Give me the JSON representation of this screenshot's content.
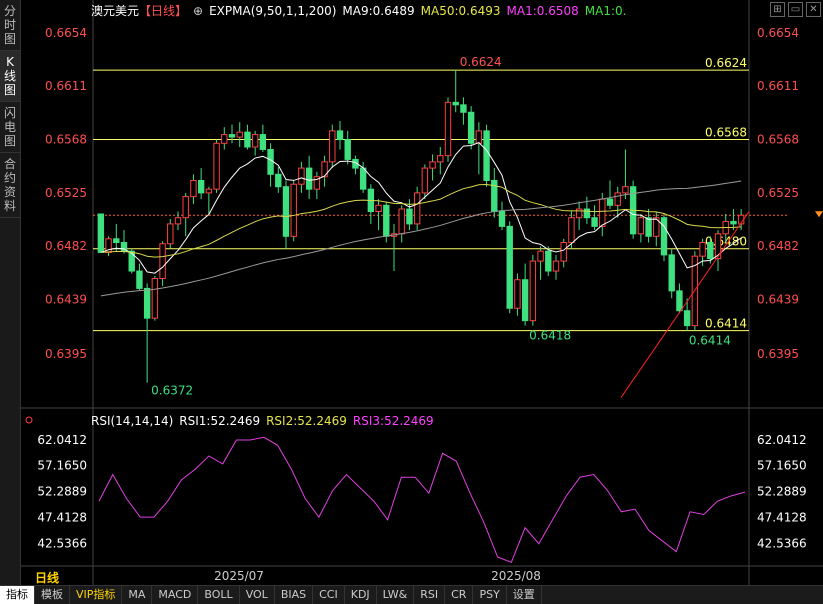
{
  "side_tabs": [
    {
      "label": "分时图"
    },
    {
      "label": "K线图",
      "active": true
    },
    {
      "label": "闪电图"
    },
    {
      "label": "合约资料"
    }
  ],
  "header": {
    "symbol": "澳元美元",
    "period": "【日线】",
    "zoom_icon": "⊕",
    "expma_label": "EXPMA(9,50,1,1,200)",
    "ma9": "MA9:0.6489",
    "ma50": "MA50:0.6493",
    "ma1a": "MA1:0.6508",
    "ma1b": "MA1:0."
  },
  "colors": {
    "up": "#3ee07f",
    "down": "#3ee07f",
    "price_axis": "#ff4d4d",
    "hline": "#ffff66",
    "ma9": "#ffffff",
    "ma50": "#d9d94c",
    "ma200": "#aaaaaa",
    "rsi": "#e040e0",
    "trend": "#ff2020"
  },
  "chart_data": {
    "type": "candlestick",
    "y_ticks": [
      "0.6654",
      "0.6611",
      "0.6568",
      "0.6525",
      "0.6482",
      "0.6439",
      "0.6395"
    ],
    "ylim": [
      0.6354,
      0.6666
    ],
    "x_labels": [
      "2025/07",
      "2025/08"
    ],
    "horizontal_levels": [
      "0.6624",
      "0.6568",
      "0.6480",
      "0.6414"
    ],
    "current_price_marker": "0.6507",
    "annotations": [
      "0.6624",
      "0.6418",
      "0.6414",
      "0.6372"
    ],
    "candles": [
      {
        "o": 0.6508,
        "h": 0.6508,
        "l": 0.6477,
        "c": 0.6477
      },
      {
        "o": 0.6477,
        "h": 0.649,
        "l": 0.6474,
        "c": 0.6488
      },
      {
        "o": 0.6488,
        "h": 0.65,
        "l": 0.6478,
        "c": 0.6485
      },
      {
        "o": 0.6485,
        "h": 0.6495,
        "l": 0.6476,
        "c": 0.6478
      },
      {
        "o": 0.6478,
        "h": 0.648,
        "l": 0.646,
        "c": 0.6462
      },
      {
        "o": 0.6462,
        "h": 0.6468,
        "l": 0.6446,
        "c": 0.6448
      },
      {
        "o": 0.6448,
        "h": 0.6452,
        "l": 0.6372,
        "c": 0.6424
      },
      {
        "o": 0.6424,
        "h": 0.6458,
        "l": 0.6422,
        "c": 0.6456
      },
      {
        "o": 0.6456,
        "h": 0.6486,
        "l": 0.645,
        "c": 0.6484
      },
      {
        "o": 0.6484,
        "h": 0.6504,
        "l": 0.648,
        "c": 0.65
      },
      {
        "o": 0.65,
        "h": 0.651,
        "l": 0.6495,
        "c": 0.6505
      },
      {
        "o": 0.6505,
        "h": 0.6525,
        "l": 0.649,
        "c": 0.6522
      },
      {
        "o": 0.6522,
        "h": 0.654,
        "l": 0.6516,
        "c": 0.6535
      },
      {
        "o": 0.6535,
        "h": 0.6545,
        "l": 0.652,
        "c": 0.6525
      },
      {
        "o": 0.6525,
        "h": 0.653,
        "l": 0.6508,
        "c": 0.6528
      },
      {
        "o": 0.6528,
        "h": 0.6568,
        "l": 0.6525,
        "c": 0.6565
      },
      {
        "o": 0.6565,
        "h": 0.6578,
        "l": 0.656,
        "c": 0.6572
      },
      {
        "o": 0.6572,
        "h": 0.658,
        "l": 0.6565,
        "c": 0.657
      },
      {
        "o": 0.657,
        "h": 0.6582,
        "l": 0.6562,
        "c": 0.6574
      },
      {
        "o": 0.6574,
        "h": 0.658,
        "l": 0.656,
        "c": 0.6562
      },
      {
        "o": 0.6562,
        "h": 0.6575,
        "l": 0.6555,
        "c": 0.6572
      },
      {
        "o": 0.6572,
        "h": 0.658,
        "l": 0.6558,
        "c": 0.656
      },
      {
        "o": 0.656,
        "h": 0.6565,
        "l": 0.653,
        "c": 0.654
      },
      {
        "o": 0.654,
        "h": 0.6546,
        "l": 0.6525,
        "c": 0.653
      },
      {
        "o": 0.653,
        "h": 0.6535,
        "l": 0.648,
        "c": 0.649
      },
      {
        "o": 0.649,
        "h": 0.6535,
        "l": 0.6486,
        "c": 0.6532
      },
      {
        "o": 0.6532,
        "h": 0.655,
        "l": 0.6525,
        "c": 0.6545
      },
      {
        "o": 0.6545,
        "h": 0.6555,
        "l": 0.652,
        "c": 0.6528
      },
      {
        "o": 0.6528,
        "h": 0.6542,
        "l": 0.652,
        "c": 0.6538
      },
      {
        "o": 0.6538,
        "h": 0.6555,
        "l": 0.653,
        "c": 0.655
      },
      {
        "o": 0.655,
        "h": 0.658,
        "l": 0.6545,
        "c": 0.6575
      },
      {
        "o": 0.6575,
        "h": 0.6583,
        "l": 0.656,
        "c": 0.6568
      },
      {
        "o": 0.6568,
        "h": 0.6575,
        "l": 0.6548,
        "c": 0.6552
      },
      {
        "o": 0.6552,
        "h": 0.6555,
        "l": 0.654,
        "c": 0.6545
      },
      {
        "o": 0.6545,
        "h": 0.655,
        "l": 0.6525,
        "c": 0.6528
      },
      {
        "o": 0.6528,
        "h": 0.6532,
        "l": 0.65,
        "c": 0.651
      },
      {
        "o": 0.651,
        "h": 0.652,
        "l": 0.6495,
        "c": 0.6515
      },
      {
        "o": 0.6515,
        "h": 0.6518,
        "l": 0.6485,
        "c": 0.649
      },
      {
        "o": 0.649,
        "h": 0.65,
        "l": 0.6462,
        "c": 0.6492
      },
      {
        "o": 0.6492,
        "h": 0.6515,
        "l": 0.6485,
        "c": 0.6512
      },
      {
        "o": 0.6512,
        "h": 0.652,
        "l": 0.6495,
        "c": 0.65
      },
      {
        "o": 0.65,
        "h": 0.653,
        "l": 0.6495,
        "c": 0.6525
      },
      {
        "o": 0.6525,
        "h": 0.6548,
        "l": 0.652,
        "c": 0.6545
      },
      {
        "o": 0.6545,
        "h": 0.6556,
        "l": 0.6535,
        "c": 0.655
      },
      {
        "o": 0.655,
        "h": 0.6562,
        "l": 0.654,
        "c": 0.6555
      },
      {
        "o": 0.6555,
        "h": 0.6602,
        "l": 0.655,
        "c": 0.6598
      },
      {
        "o": 0.6598,
        "h": 0.6624,
        "l": 0.659,
        "c": 0.6596
      },
      {
        "o": 0.6596,
        "h": 0.6602,
        "l": 0.658,
        "c": 0.659
      },
      {
        "o": 0.659,
        "h": 0.6595,
        "l": 0.656,
        "c": 0.6565
      },
      {
        "o": 0.6565,
        "h": 0.6582,
        "l": 0.654,
        "c": 0.6575
      },
      {
        "o": 0.6575,
        "h": 0.658,
        "l": 0.653,
        "c": 0.6535
      },
      {
        "o": 0.6535,
        "h": 0.6545,
        "l": 0.6505,
        "c": 0.651
      },
      {
        "o": 0.651,
        "h": 0.6518,
        "l": 0.6495,
        "c": 0.6498
      },
      {
        "o": 0.6498,
        "h": 0.6502,
        "l": 0.6428,
        "c": 0.6432
      },
      {
        "o": 0.6432,
        "h": 0.646,
        "l": 0.6426,
        "c": 0.6455
      },
      {
        "o": 0.6455,
        "h": 0.6468,
        "l": 0.6418,
        "c": 0.6422
      },
      {
        "o": 0.6422,
        "h": 0.6475,
        "l": 0.6418,
        "c": 0.647
      },
      {
        "o": 0.647,
        "h": 0.6482,
        "l": 0.6455,
        "c": 0.6478
      },
      {
        "o": 0.6478,
        "h": 0.6482,
        "l": 0.6458,
        "c": 0.6462
      },
      {
        "o": 0.6462,
        "h": 0.6475,
        "l": 0.6455,
        "c": 0.647
      },
      {
        "o": 0.647,
        "h": 0.6488,
        "l": 0.6465,
        "c": 0.6485
      },
      {
        "o": 0.6485,
        "h": 0.651,
        "l": 0.648,
        "c": 0.6505
      },
      {
        "o": 0.6505,
        "h": 0.6518,
        "l": 0.6495,
        "c": 0.6512
      },
      {
        "o": 0.6512,
        "h": 0.6522,
        "l": 0.65,
        "c": 0.6505
      },
      {
        "o": 0.6505,
        "h": 0.6515,
        "l": 0.6495,
        "c": 0.6498
      },
      {
        "o": 0.6498,
        "h": 0.6525,
        "l": 0.649,
        "c": 0.652
      },
      {
        "o": 0.652,
        "h": 0.6535,
        "l": 0.6512,
        "c": 0.6515
      },
      {
        "o": 0.6515,
        "h": 0.653,
        "l": 0.6505,
        "c": 0.6525
      },
      {
        "o": 0.6525,
        "h": 0.656,
        "l": 0.652,
        "c": 0.653
      },
      {
        "o": 0.653,
        "h": 0.6535,
        "l": 0.6488,
        "c": 0.6492
      },
      {
        "o": 0.6492,
        "h": 0.6508,
        "l": 0.6485,
        "c": 0.6505
      },
      {
        "o": 0.6505,
        "h": 0.6512,
        "l": 0.6485,
        "c": 0.649
      },
      {
        "o": 0.649,
        "h": 0.651,
        "l": 0.6482,
        "c": 0.6505
      },
      {
        "o": 0.6505,
        "h": 0.6508,
        "l": 0.647,
        "c": 0.6475
      },
      {
        "o": 0.6475,
        "h": 0.648,
        "l": 0.644,
        "c": 0.6446
      },
      {
        "o": 0.6446,
        "h": 0.6452,
        "l": 0.6428,
        "c": 0.643
      },
      {
        "o": 0.643,
        "h": 0.644,
        "l": 0.6414,
        "c": 0.6418
      },
      {
        "o": 0.6418,
        "h": 0.6478,
        "l": 0.6414,
        "c": 0.6474
      },
      {
        "o": 0.6474,
        "h": 0.6488,
        "l": 0.6466,
        "c": 0.6485
      },
      {
        "o": 0.6485,
        "h": 0.649,
        "l": 0.6468,
        "c": 0.6472
      },
      {
        "o": 0.6472,
        "h": 0.6495,
        "l": 0.6462,
        "c": 0.6492
      },
      {
        "o": 0.6492,
        "h": 0.6508,
        "l": 0.6485,
        "c": 0.6502
      },
      {
        "o": 0.6502,
        "h": 0.6512,
        "l": 0.6495,
        "c": 0.65
      },
      {
        "o": 0.65,
        "h": 0.6512,
        "l": 0.6495,
        "c": 0.6507
      }
    ],
    "rsi": {
      "label": "RSI(14,14,14)",
      "rsi1": "RSI1:52.2469",
      "rsi2": "RSI2:52.2469",
      "rsi3": "RSI3:52.2469",
      "y_ticks": [
        "62.0412",
        "57.1650",
        "52.2889",
        "47.4128",
        "42.5366"
      ],
      "ylim": [
        38.5,
        63.5
      ],
      "values": [
        50.5,
        55.5,
        51.0,
        47.5,
        47.5,
        50.5,
        54.5,
        56.5,
        59.0,
        57.5,
        62.0,
        62.0,
        62.5,
        61.0,
        56.5,
        51.0,
        47.5,
        52.5,
        55.5,
        53.0,
        50.5,
        47.0,
        55.0,
        55.0,
        52.0,
        59.5,
        58.0,
        52.0,
        46.5,
        40.0,
        39.0,
        45.5,
        42.5,
        47.0,
        51.5,
        55.0,
        55.5,
        52.5,
        48.5,
        49.0,
        45.0,
        43.0,
        41.0,
        48.5,
        48.0,
        50.5,
        51.5,
        52.2
      ]
    }
  },
  "bottom_tabs": [
    {
      "label": "指标",
      "active": true
    },
    {
      "label": "模板"
    },
    {
      "label": "VIP指标",
      "vip": true
    },
    {
      "label": "MA"
    },
    {
      "label": "MACD"
    },
    {
      "label": "BOLL"
    },
    {
      "label": "VOL"
    },
    {
      "label": "BIAS"
    },
    {
      "label": "CCI"
    },
    {
      "label": "KDJ"
    },
    {
      "label": "LW&"
    },
    {
      "label": "RSI"
    },
    {
      "label": "CR"
    },
    {
      "label": "PSY"
    },
    {
      "label": "设置"
    }
  ],
  "period_label": "日线"
}
